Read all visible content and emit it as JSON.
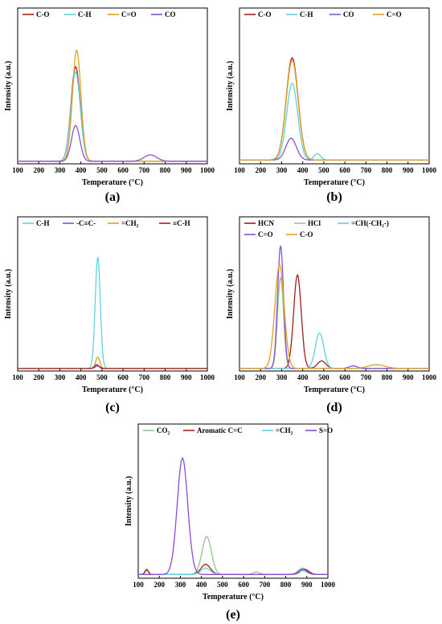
{
  "colors": {
    "dark_red": "#a0201a",
    "cyan": "#5fd3df",
    "orange": "#e0a020",
    "purple": "#8a4fd4",
    "green": "#8fc98f"
  },
  "chart_data": [
    {
      "type": "line",
      "panel_label": "(a)",
      "xlabel": "Temperature (°C)",
      "ylabel": "Intensity (a.u.)",
      "xlim": [
        100,
        1000
      ],
      "xticks": [
        100,
        200,
        300,
        400,
        500,
        600,
        700,
        800,
        900,
        1000
      ],
      "legend": "top-left",
      "series": [
        {
          "name": "C-O",
          "color": "#a0201a",
          "baseline": 0.02,
          "peaks": [
            [
              375,
              0.74,
              22
            ]
          ]
        },
        {
          "name": "C-H",
          "color": "#5fd3df",
          "baseline": 0.02,
          "peaks": [
            [
              375,
              0.7,
              22
            ]
          ]
        },
        {
          "name": "C=O",
          "color": "#e0a020",
          "baseline": 0.02,
          "peaks": [
            [
              380,
              0.87,
              20
            ]
          ]
        },
        {
          "name": "CO",
          "color": "#8a4fd4",
          "baseline": 0.02,
          "peaks": [
            [
              375,
              0.28,
              20
            ],
            [
              730,
              0.05,
              30
            ]
          ]
        }
      ]
    },
    {
      "type": "line",
      "panel_label": "(b)",
      "xlabel": "Temperature (°C)",
      "ylabel": "Intensity (a.u.)",
      "xlim": [
        100,
        1000
      ],
      "xticks": [
        100,
        200,
        300,
        400,
        500,
        600,
        700,
        800,
        900,
        1000
      ],
      "legend": "top-left",
      "series": [
        {
          "name": "C-O",
          "color": "#a0201a",
          "baseline": 0.03,
          "peaks": [
            [
              350,
              0.8,
              28
            ]
          ]
        },
        {
          "name": "C-H",
          "color": "#5fd3df",
          "baseline": 0.03,
          "peaks": [
            [
              350,
              0.6,
              26
            ],
            [
              470,
              0.05,
              15
            ]
          ]
        },
        {
          "name": "CO",
          "color": "#8a4fd4",
          "baseline": 0.03,
          "peaks": [
            [
              345,
              0.17,
              25
            ]
          ]
        },
        {
          "name": "C=O",
          "color": "#e0a020",
          "baseline": 0.03,
          "peaks": [
            [
              350,
              0.78,
              28
            ]
          ]
        }
      ]
    },
    {
      "type": "line",
      "panel_label": "(c)",
      "xlabel": "Temperature (°C)",
      "ylabel": "Intensity (a.u.)",
      "xlim": [
        100,
        1000
      ],
      "xticks": [
        100,
        200,
        300,
        400,
        500,
        600,
        700,
        800,
        900,
        1000
      ],
      "legend": "top",
      "series": [
        {
          "name": "C-H",
          "color": "#5fd3df",
          "baseline": 0.02,
          "peaks": [
            [
              480,
              0.88,
              12
            ]
          ]
        },
        {
          "name": "-C≡C-",
          "color": "#8a4fd4",
          "baseline": 0.02,
          "peaks": [
            [
              480,
              0.02,
              12
            ]
          ]
        },
        {
          "name": "=CH₂",
          "color": "#e0a020",
          "baseline": 0.02,
          "peaks": [
            [
              480,
              0.09,
              10
            ]
          ]
        },
        {
          "name": "≡C-H",
          "color": "#a0201a",
          "baseline": 0.02,
          "peaks": [
            [
              475,
              0.03,
              10
            ]
          ]
        }
      ]
    },
    {
      "type": "line",
      "panel_label": "(d)",
      "xlabel": "Temperature (°C)",
      "ylabel": "Intensity (a.u.)",
      "xlim": [
        100,
        1000
      ],
      "xticks": [
        100,
        200,
        300,
        400,
        500,
        600,
        700,
        800,
        900,
        1000
      ],
      "legend": "top-left",
      "series": [
        {
          "name": "HCN",
          "color": "#a0201a",
          "baseline": 0.02,
          "peaks": [
            [
              375,
              0.74,
              18
            ],
            [
              490,
              0.06,
              20
            ]
          ]
        },
        {
          "name": "HCl",
          "color": "#8fc98f",
          "baseline": 0.02,
          "peaks": [
            [
              295,
              0.72,
              14
            ]
          ]
        },
        {
          "name": "=CH(-CH₂-)",
          "color": "#5fd3df",
          "baseline": 0.02,
          "peaks": [
            [
              480,
              0.28,
              20
            ]
          ]
        },
        {
          "name": "C=O",
          "color": "#8a4fd4",
          "baseline": 0.02,
          "peaks": [
            [
              295,
              0.97,
              14
            ],
            [
              640,
              0.02,
              20
            ]
          ]
        },
        {
          "name": "C-O",
          "color": "#e0a020",
          "baseline": 0.02,
          "peaks": [
            [
              290,
              0.82,
              22
            ],
            [
              750,
              0.03,
              40
            ]
          ]
        }
      ]
    },
    {
      "type": "line",
      "panel_label": "(e)",
      "xlabel": "Temperature (°C)",
      "ylabel": "Intensity (a.u.)",
      "xlim": [
        100,
        1000
      ],
      "xticks": [
        100,
        200,
        300,
        400,
        500,
        600,
        700,
        800,
        900,
        1000
      ],
      "legend": "top",
      "series": [
        {
          "name": "CO₂",
          "color": "#8fc98f",
          "baseline": 0.03,
          "peaks": [
            [
              425,
              0.3,
              22
            ],
            [
              660,
              0.02,
              15
            ],
            [
              880,
              0.05,
              20
            ],
            [
              140,
              0.03,
              8
            ]
          ]
        },
        {
          "name": "Aromatic C=C",
          "color": "#a0201a",
          "baseline": 0.03,
          "peaks": [
            [
              420,
              0.08,
              22
            ],
            [
              890,
              0.04,
              20
            ],
            [
              140,
              0.04,
              8
            ]
          ]
        },
        {
          "name": "=CH₂",
          "color": "#5fd3df",
          "baseline": 0.03,
          "peaks": [
            [
              420,
              0.05,
              22
            ],
            [
              880,
              0.03,
              20
            ]
          ]
        },
        {
          "name": "S=O",
          "color": "#8a4fd4",
          "baseline": 0.03,
          "peaks": [
            [
              310,
              0.92,
              25
            ],
            [
              880,
              0.04,
              20
            ]
          ]
        }
      ]
    }
  ]
}
